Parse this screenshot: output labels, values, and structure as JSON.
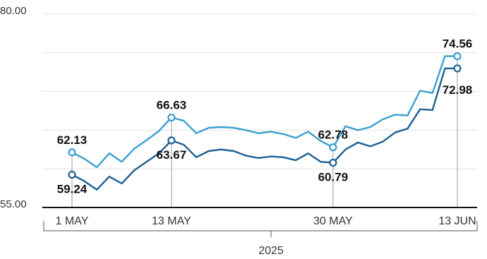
{
  "chart_data": {
    "type": "line",
    "ylim": [
      55,
      80
    ],
    "y_ticks": [
      55,
      60,
      65,
      70,
      75,
      80
    ],
    "y_tick_labels": [
      "55.00",
      "80.00"
    ],
    "grid": true,
    "x_tick_labels": [
      "1 MAY",
      "13 MAY",
      "30 MAY",
      "13 JUN"
    ],
    "x_group_label": "2025",
    "colors": {
      "upper": "#3aa0cf",
      "lower": "#1d5f94",
      "baseline": "#111111",
      "grid": "#e3e3e3"
    },
    "x": [
      "1 May",
      "2 May",
      "5 May",
      "6 May",
      "7 May",
      "8 May",
      "9 May",
      "12 May",
      "13 May",
      "14 May",
      "15 May",
      "16 May",
      "19 May",
      "20 May",
      "21 May",
      "22 May",
      "23 May",
      "26 May",
      "27 May",
      "28 May",
      "29 May",
      "30 May",
      "2 Jun",
      "3 Jun",
      "4 Jun",
      "5 Jun",
      "6 Jun",
      "9 Jun",
      "10 Jun",
      "11 Jun",
      "12 Jun",
      "13 Jun"
    ],
    "series": [
      {
        "key": "upper",
        "values": [
          62.13,
          61.3,
          60.2,
          62.0,
          60.9,
          62.6,
          63.7,
          64.9,
          66.63,
          66.2,
          64.6,
          65.3,
          65.4,
          65.3,
          65.0,
          64.6,
          64.8,
          64.5,
          64.0,
          64.8,
          63.6,
          62.78,
          65.5,
          65.0,
          65.4,
          66.4,
          67.0,
          66.9,
          70.1,
          69.8,
          74.56,
          74.56
        ]
      },
      {
        "key": "lower",
        "values": [
          59.24,
          58.4,
          57.3,
          59.0,
          58.1,
          59.8,
          60.9,
          62.0,
          63.67,
          63.1,
          61.5,
          62.3,
          62.5,
          62.3,
          61.7,
          61.4,
          61.6,
          61.5,
          61.1,
          62.0,
          60.9,
          60.79,
          62.5,
          63.4,
          62.9,
          63.5,
          64.7,
          65.2,
          67.7,
          67.6,
          72.98,
          72.98
        ]
      }
    ],
    "annotations": [
      {
        "x_index": 0,
        "series": "upper",
        "label": "62.13",
        "pos": "above"
      },
      {
        "x_index": 0,
        "series": "lower",
        "label": "59.24",
        "pos": "below"
      },
      {
        "x_index": 8,
        "series": "upper",
        "label": "66.63",
        "pos": "above"
      },
      {
        "x_index": 8,
        "series": "lower",
        "label": "63.67",
        "pos": "below"
      },
      {
        "x_index": 21,
        "series": "upper",
        "label": "62.78",
        "pos": "above"
      },
      {
        "x_index": 21,
        "series": "lower",
        "label": "60.79",
        "pos": "below"
      },
      {
        "x_index": 31,
        "series": "upper",
        "label": "74.56",
        "pos": "above"
      },
      {
        "x_index": 31,
        "series": "lower",
        "label": "72.98",
        "pos": "below"
      }
    ],
    "x_tick_indices": [
      0,
      8,
      21,
      31
    ]
  }
}
